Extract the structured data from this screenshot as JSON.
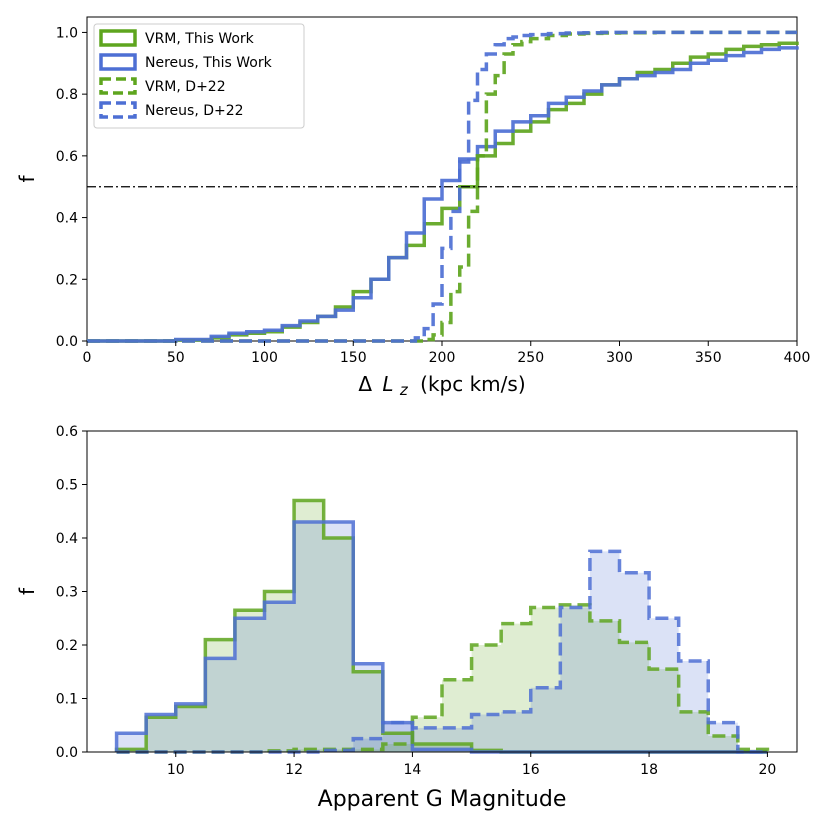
{
  "colors": {
    "green": "#5ea51e",
    "blue": "#4d6fd4",
    "green_fill": "#d9ecc4",
    "blue_fill": "#d4dcf5",
    "overlap_fill": "#c5d6c8"
  },
  "chart_data": [
    {
      "type": "line",
      "drawstyle": "step-cdf",
      "xlabel_prefix": "Δ",
      "xlabel_var": "L",
      "xlabel_sub": "z",
      "xlabel_suffix": "(kpc km/s)",
      "ylabel": "f",
      "xlim": [
        0,
        400
      ],
      "ylim": [
        0,
        1.05
      ],
      "xticks": [
        0,
        50,
        100,
        150,
        200,
        250,
        300,
        350,
        400
      ],
      "yticks": [
        0.0,
        0.2,
        0.4,
        0.6,
        0.8,
        1.0
      ],
      "xtick_labels": [
        "0",
        "50",
        "100",
        "150",
        "200",
        "250",
        "300",
        "350",
        "400"
      ],
      "ytick_labels": [
        "0.0",
        "0.2",
        "0.4",
        "0.6",
        "0.8",
        "1.0"
      ],
      "hline": 0.5,
      "legend_position": "top-left",
      "series": [
        {
          "name": "VRM, This Work",
          "color": "green",
          "style": "solid",
          "x": [
            0,
            50,
            70,
            80,
            90,
            100,
            110,
            120,
            130,
            140,
            150,
            160,
            170,
            180,
            190,
            200,
            210,
            220,
            230,
            240,
            250,
            260,
            270,
            280,
            290,
            300,
            310,
            320,
            330,
            340,
            350,
            360,
            370,
            380,
            390,
            400
          ],
          "y": [
            0,
            0.003,
            0.01,
            0.02,
            0.025,
            0.03,
            0.045,
            0.06,
            0.08,
            0.11,
            0.16,
            0.2,
            0.27,
            0.31,
            0.38,
            0.43,
            0.5,
            0.6,
            0.64,
            0.68,
            0.71,
            0.75,
            0.77,
            0.8,
            0.83,
            0.85,
            0.87,
            0.88,
            0.9,
            0.92,
            0.93,
            0.945,
            0.955,
            0.96,
            0.965,
            0.97
          ]
        },
        {
          "name": "Nereus, This Work",
          "color": "blue",
          "style": "solid",
          "x": [
            0,
            50,
            70,
            80,
            90,
            100,
            110,
            120,
            130,
            140,
            150,
            160,
            170,
            180,
            190,
            200,
            210,
            220,
            230,
            240,
            250,
            260,
            270,
            280,
            290,
            300,
            310,
            320,
            330,
            340,
            350,
            360,
            370,
            380,
            390,
            400
          ],
          "y": [
            0,
            0.005,
            0.015,
            0.025,
            0.03,
            0.035,
            0.05,
            0.065,
            0.08,
            0.1,
            0.14,
            0.2,
            0.27,
            0.35,
            0.46,
            0.52,
            0.59,
            0.63,
            0.68,
            0.71,
            0.73,
            0.77,
            0.79,
            0.81,
            0.83,
            0.85,
            0.86,
            0.87,
            0.88,
            0.9,
            0.91,
            0.925,
            0.935,
            0.945,
            0.95,
            0.955
          ]
        },
        {
          "name": "VRM, D+22",
          "color": "green",
          "style": "dashed",
          "x": [
            0,
            190,
            195,
            200,
            205,
            210,
            215,
            220,
            225,
            230,
            235,
            240,
            245,
            250,
            260,
            270,
            280,
            290,
            300,
            320,
            340,
            360,
            380,
            400
          ],
          "y": [
            0,
            0.005,
            0.02,
            0.06,
            0.16,
            0.24,
            0.42,
            0.6,
            0.8,
            0.86,
            0.93,
            0.96,
            0.97,
            0.98,
            0.99,
            0.995,
            0.997,
            0.998,
            0.999,
            1.0,
            1.0,
            1.0,
            1.0,
            1.0
          ]
        },
        {
          "name": "Nereus, D+22",
          "color": "blue",
          "style": "dashed",
          "x": [
            0,
            185,
            190,
            195,
            200,
            205,
            210,
            215,
            220,
            225,
            230,
            235,
            240,
            245,
            250,
            260,
            270,
            280,
            290,
            300,
            320,
            340,
            360,
            380,
            400
          ],
          "y": [
            0,
            0.01,
            0.04,
            0.12,
            0.3,
            0.42,
            0.58,
            0.78,
            0.88,
            0.93,
            0.96,
            0.98,
            0.985,
            0.99,
            0.993,
            0.996,
            0.998,
            0.999,
            1.0,
            1.0,
            1.0,
            1.0,
            1.0,
            1.0,
            1.0
          ]
        }
      ]
    },
    {
      "type": "area",
      "drawstyle": "step-histogram",
      "xlabel": "Apparent G Magnitude",
      "ylabel": "f",
      "xlim": [
        8.5,
        20.5
      ],
      "ylim": [
        0,
        0.6
      ],
      "xticks": [
        10,
        12,
        14,
        16,
        18,
        20
      ],
      "yticks": [
        0.0,
        0.1,
        0.2,
        0.3,
        0.4,
        0.5,
        0.6
      ],
      "xtick_labels": [
        "10",
        "12",
        "14",
        "16",
        "18",
        "20"
      ],
      "ytick_labels": [
        "0.0",
        "0.1",
        "0.2",
        "0.3",
        "0.4",
        "0.5",
        "0.6"
      ],
      "bin_edges_start": 9.0,
      "bin_width": 0.5,
      "series": [
        {
          "name": "VRM, This Work",
          "color": "green",
          "style": "solid",
          "values": [
            0.005,
            0.065,
            0.085,
            0.21,
            0.265,
            0.3,
            0.47,
            0.4,
            0.15,
            0.035,
            0.015,
            0.015,
            0.003,
            0.0,
            0.0,
            0.0,
            0.0,
            0.0,
            0.0,
            0.0,
            0.0,
            0.0
          ]
        },
        {
          "name": "Nereus, This Work",
          "color": "blue",
          "style": "solid",
          "values": [
            0.035,
            0.07,
            0.09,
            0.175,
            0.25,
            0.28,
            0.43,
            0.43,
            0.165,
            0.055,
            0.005,
            0.005,
            0.0,
            0.0,
            0.0,
            0.0,
            0.0,
            0.0,
            0.0,
            0.0,
            0.0,
            0.0
          ]
        },
        {
          "name": "VRM, D+22",
          "color": "green",
          "style": "dashed",
          "values": [
            0.0,
            0.0,
            0.0,
            0.0,
            0.0,
            0.002,
            0.005,
            0.005,
            0.005,
            0.015,
            0.065,
            0.135,
            0.2,
            0.24,
            0.27,
            0.275,
            0.245,
            0.205,
            0.155,
            0.075,
            0.03,
            0.005
          ]
        },
        {
          "name": "Nereus, D+22",
          "color": "blue",
          "style": "dashed",
          "values": [
            0.0,
            0.0,
            0.0,
            0.0,
            0.0,
            0.0,
            0.0,
            0.003,
            0.025,
            0.055,
            0.045,
            0.045,
            0.07,
            0.075,
            0.12,
            0.27,
            0.375,
            0.335,
            0.25,
            0.17,
            0.055,
            0.0
          ]
        }
      ]
    }
  ]
}
